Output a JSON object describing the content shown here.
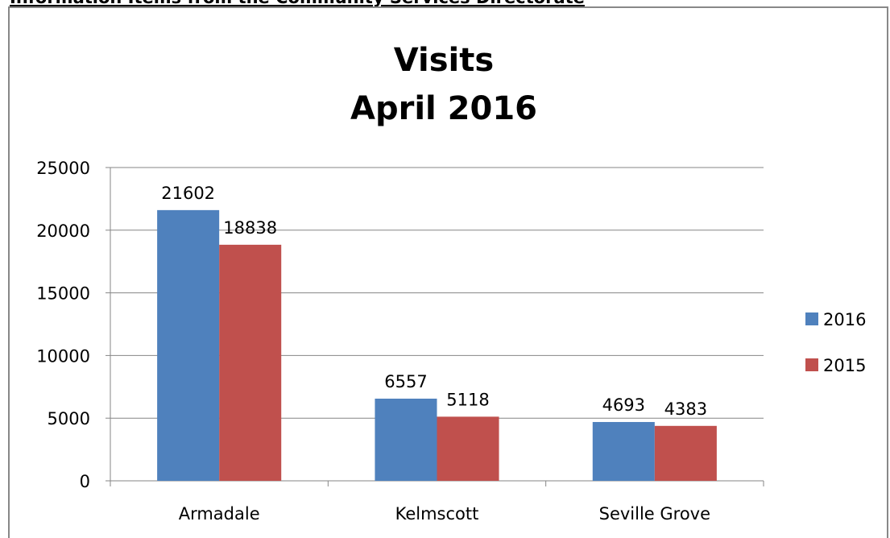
{
  "header": {
    "title": "Information Items from the Community Services Directorate"
  },
  "chart_data": {
    "type": "bar",
    "title": "Visits",
    "subtitle": "April 2016",
    "categories": [
      "Armadale",
      "Kelmscott",
      "Seville Grove"
    ],
    "series": [
      {
        "name": "2016",
        "color": "#4f81bd",
        "values": [
          21602,
          6557,
          4693
        ]
      },
      {
        "name": "2015",
        "color": "#c0504d",
        "values": [
          18838,
          5118,
          4383
        ]
      }
    ],
    "ylim": [
      0,
      25000
    ],
    "yticks": [
      0,
      5000,
      10000,
      15000,
      20000,
      25000
    ],
    "grid": true,
    "legend": "right"
  }
}
